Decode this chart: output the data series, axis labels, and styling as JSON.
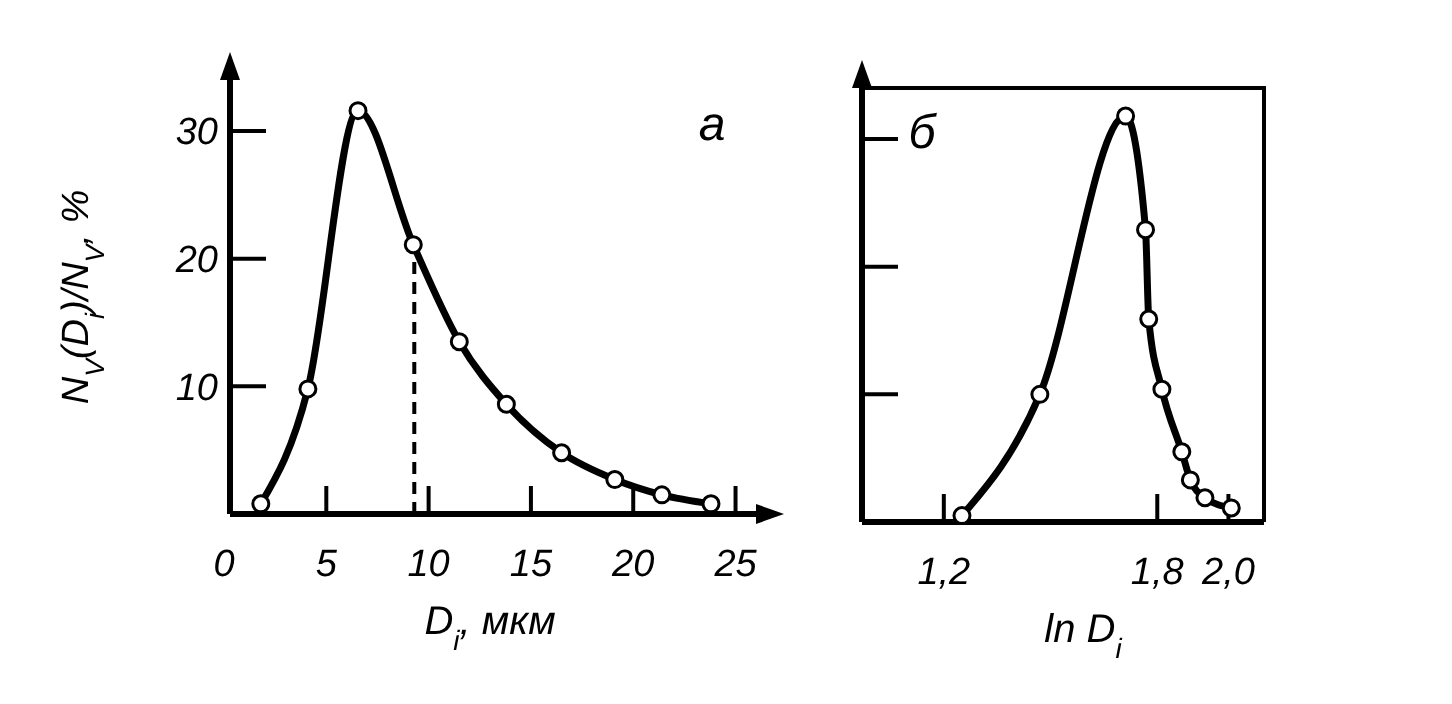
{
  "chart_data": [
    {
      "type": "line",
      "xlabel": "D$_{i}$, мкм",
      "ylabel": "N$_{V}$(D$_{i}$)/N$_{V}$, %",
      "annotations": [
        "а"
      ],
      "marker": "circle",
      "line_style": "solid",
      "grid": false,
      "xlim": [
        0,
        26
      ],
      "xticks": [
        0,
        5,
        10,
        15,
        20,
        25
      ],
      "ylim": [
        0,
        34
      ],
      "yticks": [
        10,
        20,
        30
      ],
      "x": [
        1.8,
        4.1,
        6.55,
        9.25,
        11.5,
        13.8,
        16.5,
        19.1,
        21.4,
        23.8
      ],
      "series": [
        {
          "color": "#000000",
          "values": [
            0.8,
            9.8,
            31.6,
            21.1,
            13.5,
            8.6,
            4.8,
            2.7,
            1.5,
            0.8
          ]
        }
      ],
      "ref_lines": [
        {
          "axis": "x",
          "value": 9.3,
          "line_style": "dashed",
          "color": "#000000"
        }
      ]
    },
    {
      "type": "line",
      "xlabel": "ln D$_{i}$",
      "annotations": [
        "б"
      ],
      "marker": "circle",
      "line_style": "solid",
      "grid": false,
      "tick_labels": "x",
      "xlim": [
        0.97,
        2.1
      ],
      "xticks": [
        {
          "value": 1.2,
          "label": "1,2"
        },
        {
          "value": 1.8,
          "label": "1,8"
        },
        {
          "value": 2.0,
          "label": "2,0"
        }
      ],
      "ylim": [
        0,
        34
      ],
      "yticks": [
        {
          "value": 10,
          "label": null
        },
        {
          "value": 20,
          "label": null
        },
        {
          "value": 30,
          "label": null
        }
      ],
      "x": [
        1.251,
        1.47,
        1.711,
        1.767,
        1.776,
        1.813,
        1.869,
        1.893,
        1.934,
        2.008
      ],
      "series": [
        {
          "color": "#000000",
          "values": [
            0.5,
            10.0,
            31.8,
            22.9,
            15.9,
            10.4,
            5.5,
            3.3,
            1.9,
            1.1
          ]
        }
      ]
    }
  ]
}
